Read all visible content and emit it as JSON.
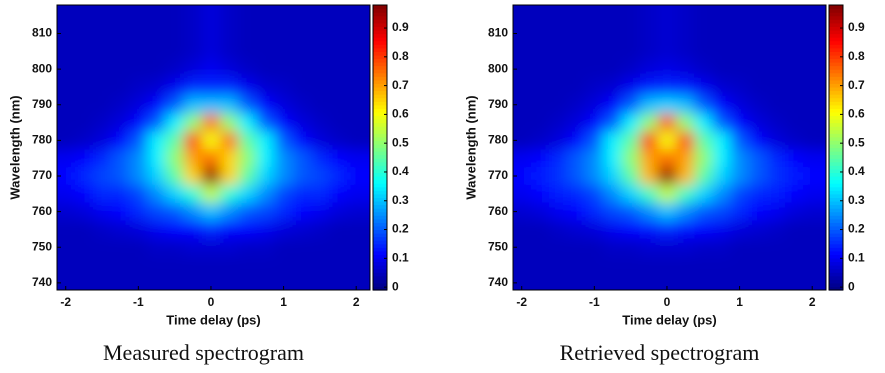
{
  "chart_data": [
    {
      "type": "heatmap",
      "caption": "Measured spectrogram",
      "x_label": "Time delay (ps)",
      "y_label": "Wavelength (nm)",
      "x": [
        -2,
        -1.75,
        -1.5,
        -1.25,
        -1,
        -0.75,
        -0.5,
        -0.25,
        0,
        0.25,
        0.5,
        0.75,
        1,
        1.25,
        1.5,
        1.75,
        2
      ],
      "y": [
        805,
        800,
        795,
        790,
        785,
        780,
        775,
        770,
        765,
        760,
        755,
        750,
        745
      ],
      "z": [
        [
          0.05,
          0.05,
          0.05,
          0.05,
          0.05,
          0.05,
          0.05,
          0.06,
          0.08,
          0.06,
          0.05,
          0.05,
          0.05,
          0.05,
          0.05,
          0.05,
          0.05
        ],
        [
          0.05,
          0.05,
          0.05,
          0.05,
          0.05,
          0.05,
          0.06,
          0.08,
          0.1,
          0.08,
          0.06,
          0.05,
          0.05,
          0.05,
          0.05,
          0.05,
          0.05
        ],
        [
          0.05,
          0.05,
          0.05,
          0.05,
          0.06,
          0.07,
          0.1,
          0.15,
          0.15,
          0.15,
          0.1,
          0.07,
          0.06,
          0.05,
          0.05,
          0.05,
          0.05
        ],
        [
          0.05,
          0.05,
          0.05,
          0.06,
          0.08,
          0.12,
          0.2,
          0.3,
          0.3,
          0.3,
          0.2,
          0.12,
          0.08,
          0.06,
          0.05,
          0.05,
          0.05
        ],
        [
          0.05,
          0.05,
          0.06,
          0.08,
          0.12,
          0.2,
          0.35,
          0.5,
          0.75,
          0.5,
          0.35,
          0.2,
          0.12,
          0.08,
          0.06,
          0.05,
          0.05
        ],
        [
          0.05,
          0.06,
          0.08,
          0.12,
          0.2,
          0.35,
          0.45,
          0.8,
          0.6,
          0.75,
          0.45,
          0.35,
          0.2,
          0.12,
          0.08,
          0.06,
          0.05
        ],
        [
          0.1,
          0.12,
          0.15,
          0.2,
          0.25,
          0.35,
          0.5,
          0.7,
          0.75,
          0.65,
          0.5,
          0.35,
          0.25,
          0.2,
          0.15,
          0.12,
          0.1
        ],
        [
          0.12,
          0.15,
          0.18,
          0.2,
          0.25,
          0.32,
          0.45,
          0.65,
          0.97,
          0.65,
          0.45,
          0.32,
          0.25,
          0.2,
          0.18,
          0.15,
          0.12
        ],
        [
          0.1,
          0.12,
          0.15,
          0.15,
          0.18,
          0.25,
          0.32,
          0.4,
          0.55,
          0.4,
          0.32,
          0.25,
          0.18,
          0.15,
          0.15,
          0.12,
          0.1
        ],
        [
          0.07,
          0.08,
          0.1,
          0.12,
          0.15,
          0.18,
          0.2,
          0.25,
          0.3,
          0.25,
          0.2,
          0.18,
          0.15,
          0.12,
          0.1,
          0.08,
          0.07
        ],
        [
          0.05,
          0.05,
          0.06,
          0.07,
          0.08,
          0.1,
          0.12,
          0.12,
          0.15,
          0.12,
          0.12,
          0.1,
          0.08,
          0.07,
          0.06,
          0.05,
          0.05
        ],
        [
          0.05,
          0.05,
          0.05,
          0.05,
          0.05,
          0.06,
          0.06,
          0.07,
          0.07,
          0.07,
          0.06,
          0.06,
          0.05,
          0.05,
          0.05,
          0.05,
          0.05
        ],
        [
          0.05,
          0.05,
          0.05,
          0.05,
          0.05,
          0.05,
          0.05,
          0.05,
          0.05,
          0.05,
          0.05,
          0.05,
          0.05,
          0.05,
          0.05,
          0.05,
          0.05
        ]
      ],
      "xlim": [
        -2.12,
        2.19
      ],
      "ylim": [
        738,
        818
      ],
      "xticks": [
        -2,
        -1,
        0,
        1,
        2
      ],
      "yticks": [
        740,
        750,
        760,
        770,
        780,
        790,
        800,
        810
      ],
      "clim": [
        -0.01,
        0.98
      ],
      "cticks": [
        0,
        0.1,
        0.2,
        0.3,
        0.4,
        0.5,
        0.6,
        0.7,
        0.8,
        0.9
      ]
    },
    {
      "type": "heatmap",
      "caption": "Retrieved spectrogram",
      "x_label": "Time delay (ps)",
      "y_label": "Wavelength (nm)",
      "x": [
        -2,
        -1.75,
        -1.5,
        -1.25,
        -1,
        -0.75,
        -0.5,
        -0.25,
        0,
        0.25,
        0.5,
        0.75,
        1,
        1.25,
        1.5,
        1.75,
        2
      ],
      "y": [
        805,
        800,
        795,
        790,
        785,
        780,
        775,
        770,
        765,
        760,
        755,
        750,
        745
      ],
      "z": [
        [
          0.05,
          0.05,
          0.05,
          0.05,
          0.05,
          0.05,
          0.05,
          0.06,
          0.07,
          0.06,
          0.05,
          0.05,
          0.05,
          0.05,
          0.05,
          0.05,
          0.05
        ],
        [
          0.05,
          0.05,
          0.05,
          0.05,
          0.05,
          0.05,
          0.06,
          0.08,
          0.09,
          0.08,
          0.06,
          0.05,
          0.05,
          0.05,
          0.05,
          0.05,
          0.05
        ],
        [
          0.05,
          0.05,
          0.05,
          0.05,
          0.06,
          0.07,
          0.1,
          0.14,
          0.15,
          0.14,
          0.1,
          0.07,
          0.06,
          0.05,
          0.05,
          0.05,
          0.05
        ],
        [
          0.05,
          0.05,
          0.05,
          0.06,
          0.08,
          0.12,
          0.2,
          0.3,
          0.32,
          0.3,
          0.2,
          0.12,
          0.08,
          0.06,
          0.05,
          0.05,
          0.05
        ],
        [
          0.05,
          0.05,
          0.06,
          0.08,
          0.12,
          0.2,
          0.35,
          0.5,
          0.78,
          0.5,
          0.35,
          0.2,
          0.12,
          0.08,
          0.06,
          0.05,
          0.05
        ],
        [
          0.05,
          0.06,
          0.08,
          0.12,
          0.2,
          0.35,
          0.45,
          0.82,
          0.6,
          0.8,
          0.45,
          0.35,
          0.2,
          0.12,
          0.08,
          0.06,
          0.05
        ],
        [
          0.1,
          0.12,
          0.15,
          0.2,
          0.25,
          0.35,
          0.5,
          0.7,
          0.75,
          0.7,
          0.5,
          0.35,
          0.25,
          0.2,
          0.15,
          0.12,
          0.1
        ],
        [
          0.12,
          0.14,
          0.16,
          0.2,
          0.25,
          0.32,
          0.45,
          0.68,
          0.97,
          0.68,
          0.45,
          0.32,
          0.25,
          0.2,
          0.16,
          0.14,
          0.12
        ],
        [
          0.1,
          0.12,
          0.14,
          0.15,
          0.18,
          0.25,
          0.32,
          0.42,
          0.55,
          0.42,
          0.32,
          0.25,
          0.18,
          0.15,
          0.14,
          0.12,
          0.1
        ],
        [
          0.07,
          0.08,
          0.1,
          0.12,
          0.15,
          0.18,
          0.2,
          0.25,
          0.3,
          0.25,
          0.2,
          0.18,
          0.15,
          0.12,
          0.1,
          0.08,
          0.07
        ],
        [
          0.05,
          0.05,
          0.06,
          0.07,
          0.08,
          0.1,
          0.12,
          0.13,
          0.15,
          0.13,
          0.12,
          0.1,
          0.08,
          0.07,
          0.06,
          0.05,
          0.05
        ],
        [
          0.05,
          0.05,
          0.05,
          0.05,
          0.05,
          0.06,
          0.06,
          0.07,
          0.07,
          0.07,
          0.06,
          0.06,
          0.05,
          0.05,
          0.05,
          0.05,
          0.05
        ],
        [
          0.05,
          0.05,
          0.05,
          0.05,
          0.05,
          0.05,
          0.05,
          0.05,
          0.05,
          0.05,
          0.05,
          0.05,
          0.05,
          0.05,
          0.05,
          0.05,
          0.05
        ]
      ],
      "xlim": [
        -2.12,
        2.19
      ],
      "ylim": [
        738,
        818
      ],
      "xticks": [
        -2,
        -1,
        0,
        1,
        2
      ],
      "yticks": [
        740,
        750,
        760,
        770,
        780,
        790,
        800,
        810
      ],
      "clim": [
        -0.01,
        0.98
      ],
      "cticks": [
        0,
        0.1,
        0.2,
        0.3,
        0.4,
        0.5,
        0.6,
        0.7,
        0.8,
        0.9
      ]
    }
  ]
}
